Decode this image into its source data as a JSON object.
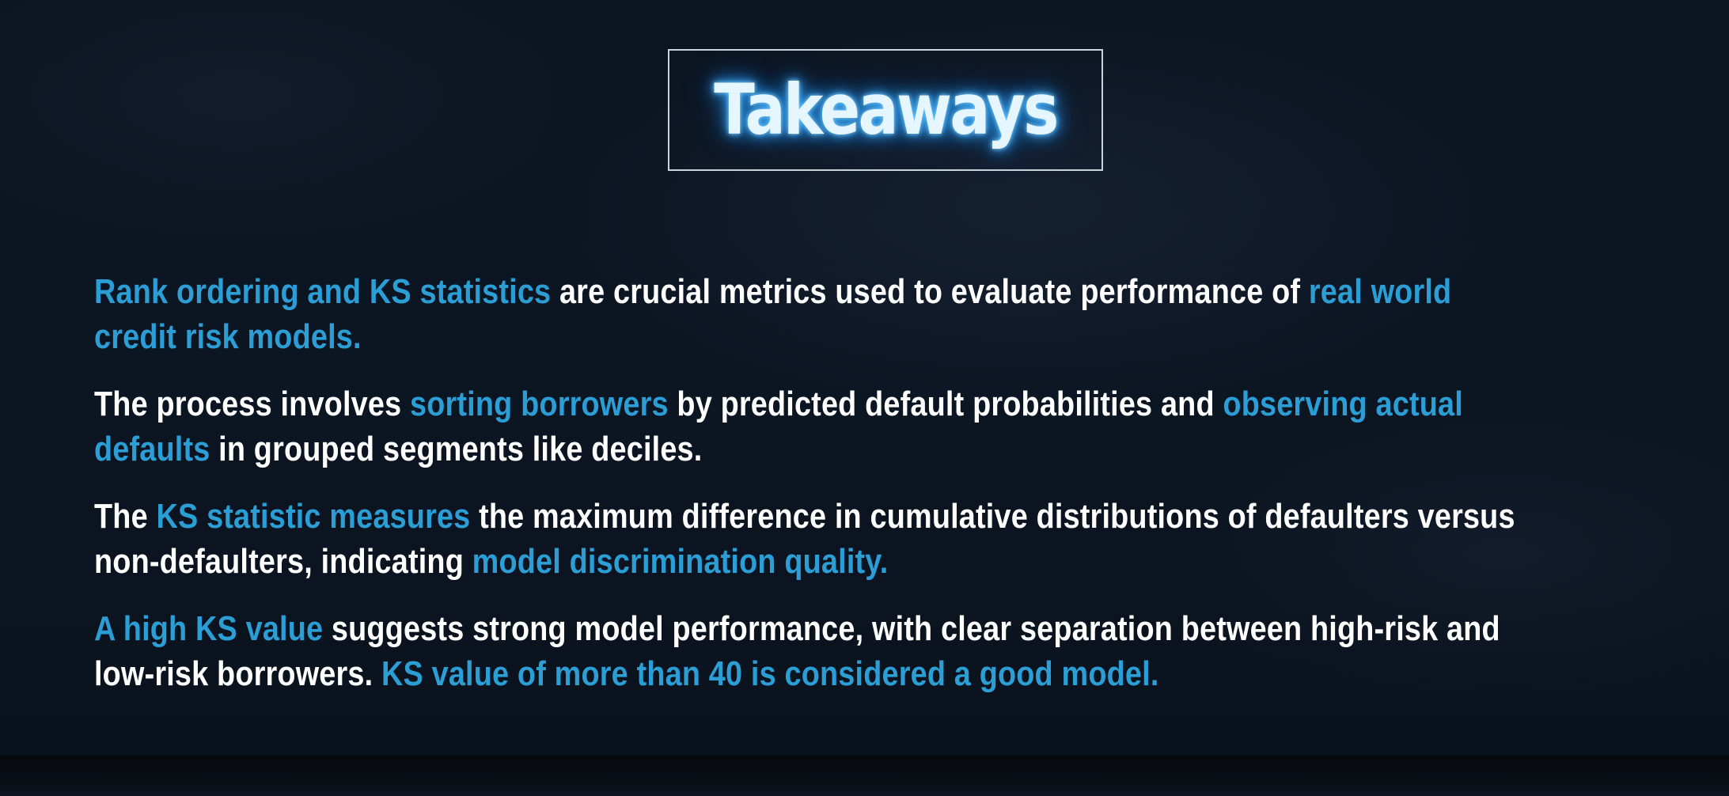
{
  "slide": {
    "title": "Takeaways",
    "paragraphs": [
      {
        "segments": [
          {
            "text": "Rank ordering and KS statistics",
            "highlight": true
          },
          {
            "text": " are crucial metrics used to evaluate performance of ",
            "highlight": false
          },
          {
            "text": "real world",
            "highlight": true
          },
          {
            "text": "\n",
            "highlight": false
          },
          {
            "text": "credit risk models.",
            "highlight": true
          }
        ]
      },
      {
        "segments": [
          {
            "text": "The process involves ",
            "highlight": false
          },
          {
            "text": "sorting borrowers",
            "highlight": true
          },
          {
            "text": " by predicted default probabilities and ",
            "highlight": false
          },
          {
            "text": "observing actual",
            "highlight": true
          },
          {
            "text": "\n",
            "highlight": false
          },
          {
            "text": "defaults",
            "highlight": true
          },
          {
            "text": " in grouped segments like deciles.",
            "highlight": false
          }
        ]
      },
      {
        "segments": [
          {
            "text": "The ",
            "highlight": false
          },
          {
            "text": "KS statistic measures",
            "highlight": true
          },
          {
            "text": " the maximum difference in cumulative distributions of defaulters versus",
            "highlight": false
          },
          {
            "text": "\n",
            "highlight": false
          },
          {
            "text": "non-defaulters, indicating ",
            "highlight": false
          },
          {
            "text": "model discrimination quality.",
            "highlight": true
          }
        ]
      },
      {
        "segments": [
          {
            "text": "A high KS value",
            "highlight": true
          },
          {
            "text": " suggests strong model performance, with clear separation between high-risk and",
            "highlight": false
          },
          {
            "text": "\n",
            "highlight": false
          },
          {
            "text": "low-risk borrowers. ",
            "highlight": false
          },
          {
            "text": "KS value of more than 40 is considered a good model.",
            "highlight": true
          }
        ]
      }
    ]
  },
  "colors": {
    "highlight": "#2b9ed6",
    "text": "#ffffff",
    "title_glow": "#3fa9f5",
    "background": "#0c1522"
  }
}
